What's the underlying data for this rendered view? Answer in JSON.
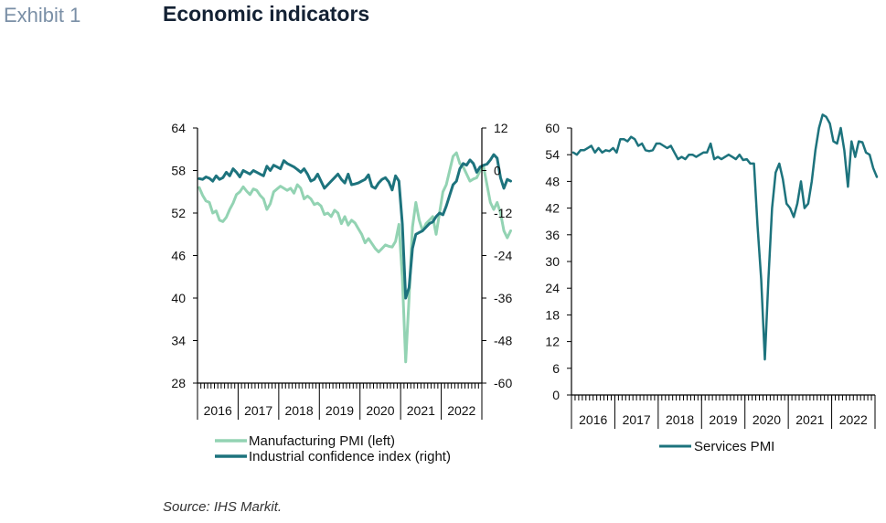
{
  "header": {
    "exhibit": "Exhibit 1",
    "title": "Economic indicators"
  },
  "footer": {
    "source": "Source: IHS Markit."
  },
  "colors": {
    "manufacturing": "#93d3b3",
    "industrial": "#1d737d",
    "services": "#1d737d",
    "axis": "#000000"
  },
  "chart_data": [
    {
      "type": "line",
      "x_categories": [
        "2016",
        "2017",
        "2018",
        "2019",
        "2020",
        "2021",
        "2022"
      ],
      "x_ticks": "monthly",
      "y_left": {
        "ticks": [
          "64",
          "58",
          "52",
          "46",
          "40",
          "34",
          "28"
        ],
        "ylim": [
          28,
          64
        ]
      },
      "y_right": {
        "ticks": [
          "12",
          "0",
          "-12",
          "-24",
          "-36",
          "-48",
          "-60"
        ],
        "ylim": [
          -60,
          12
        ]
      },
      "legend": [
        "Manufacturing PMI (left)",
        "Industrial confidence index (right)"
      ],
      "series": [
        {
          "name": "Manufacturing PMI (left)",
          "axis": "left",
          "values": [
            55.6,
            54.5,
            53.7,
            53.5,
            52.0,
            52.3,
            51.0,
            50.8,
            51.4,
            52.5,
            53.4,
            54.6,
            55.0,
            55.7,
            55.1,
            54.6,
            55.4,
            55.2,
            54.5,
            54.0,
            52.5,
            53.3,
            55.0,
            55.4,
            55.8,
            55.5,
            55.2,
            55.5,
            54.8,
            56.0,
            55.5,
            54.0,
            54.4,
            54.0,
            53.2,
            53.4,
            53.0,
            51.8,
            52.0,
            51.5,
            52.4,
            52.0,
            50.5,
            51.5,
            50.3,
            51.0,
            50.6,
            49.8,
            49.0,
            47.8,
            48.4,
            47.7,
            47.0,
            46.5,
            47.0,
            47.5,
            47.3,
            47.2,
            48.0,
            50.4,
            43.0,
            31.0,
            40.0,
            50.0,
            53.5,
            51.0,
            49.5,
            50.5,
            51.0,
            51.5,
            49.0,
            52.0,
            55.0,
            56.0,
            58.0,
            60.0,
            60.5,
            59.0,
            58.5,
            57.5,
            56.5,
            56.8,
            57.0,
            58.0,
            58.5,
            56.0,
            53.5,
            52.5,
            53.5,
            52.0,
            49.5,
            48.5,
            49.5
          ],
          "x_start": "2016-01"
        },
        {
          "name": "Industrial confidence index (right)",
          "axis": "right",
          "values": [
            -2.3,
            -2.5,
            -1.8,
            -2.2,
            -3.0,
            -1.5,
            -2.5,
            -2.0,
            -0.5,
            -1.5,
            0.5,
            -0.5,
            -1.8,
            0.0,
            -0.5,
            -1.0,
            0.0,
            -0.5,
            -1.0,
            -1.5,
            1.2,
            0.0,
            1.5,
            1.0,
            0.5,
            2.8,
            2.0,
            1.5,
            1.0,
            0.3,
            -0.5,
            0.5,
            -1.0,
            -3.0,
            -2.5,
            -1.0,
            -3.0,
            -5.0,
            -4.0,
            -3.0,
            -2.0,
            -1.0,
            -2.5,
            -3.5,
            -1.0,
            -4.0,
            -3.8,
            -3.5,
            -3.0,
            -2.5,
            -1.2,
            -4.5,
            -5.0,
            -3.5,
            -2.5,
            -2.0,
            -3.2,
            -5.5,
            -1.5,
            -3.0,
            -15.0,
            -36.0,
            -33.0,
            -22.0,
            -18.0,
            -17.5,
            -17.0,
            -16.0,
            -15.0,
            -14.5,
            -13.0,
            -12.0,
            -12.5,
            -10.0,
            -7.0,
            -4.0,
            -3.0,
            0.5,
            2.0,
            1.5,
            3.0,
            2.0,
            -0.5,
            1.0,
            1.5,
            1.8,
            3.0,
            4.5,
            3.5,
            -2.0,
            -5.0,
            -2.5,
            -3.0
          ],
          "x_start": "2016-01"
        }
      ]
    },
    {
      "type": "line",
      "x_categories": [
        "2016",
        "2017",
        "2018",
        "2019",
        "2020",
        "2021",
        "2022"
      ],
      "x_ticks": "monthly",
      "y_left": {
        "ticks": [
          "60",
          "54",
          "48",
          "42",
          "36",
          "30",
          "24",
          "18",
          "12",
          "6",
          "0"
        ],
        "ylim": [
          0,
          60
        ]
      },
      "legend": [
        "Services PMI"
      ],
      "series": [
        {
          "name": "Services PMI",
          "axis": "left",
          "values": [
            54.5,
            54.0,
            55.0,
            55.0,
            55.5,
            56.0,
            54.5,
            55.5,
            54.5,
            55.0,
            54.8,
            55.5,
            54.5,
            57.5,
            57.5,
            57.0,
            58.0,
            57.5,
            56.0,
            56.5,
            55.0,
            54.8,
            55.0,
            56.5,
            56.5,
            56.0,
            55.5,
            56.0,
            54.5,
            53.0,
            53.5,
            53.0,
            54.0,
            54.0,
            53.5,
            54.0,
            54.5,
            54.5,
            56.5,
            53.0,
            53.5,
            53.0,
            53.5,
            54.0,
            53.5,
            53.0,
            54.0,
            52.8,
            53.0,
            52.0,
            52.0,
            38.0,
            26.0,
            8.0,
            26.0,
            42.0,
            50.0,
            52.0,
            48.5,
            43.0,
            42.0,
            40.0,
            43.0,
            48.0,
            42.0,
            43.0,
            48.0,
            55.0,
            60.0,
            63.0,
            62.5,
            61.0,
            57.0,
            56.5,
            60.0,
            55.0,
            46.8,
            57.0,
            53.5,
            57.0,
            56.8,
            54.5,
            54.0,
            51.0,
            49.0
          ],
          "x_start": "2016-01"
        }
      ]
    }
  ]
}
